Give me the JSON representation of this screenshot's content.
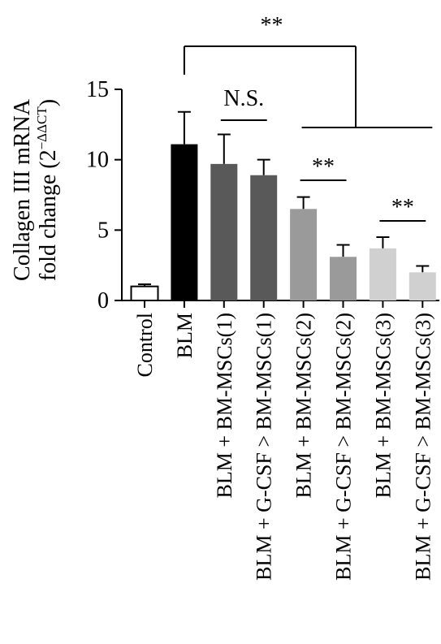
{
  "chart_data": {
    "type": "bar",
    "ylabel_line1": "Collagen III mRNA",
    "ylabel_line2_prefix": "fold change (2",
    "ylabel_superscript": "−ΔΔCT",
    "ylabel_line2_suffix": ")",
    "ylim": [
      0,
      15
    ],
    "yticks": [
      0,
      5,
      10,
      15
    ],
    "categories": [
      "Control",
      "BLM",
      "BLM + BM-MSCs(1)",
      "BLM + G-CSF > BM-MSCs(1)",
      "BLM + BM-MSCs(2)",
      "BLM + G-CSF > BM-MSCs(2)",
      "BLM + BM-MSCs(3)",
      "BLM + G-CSF > BM-MSCs(3)"
    ],
    "values": [
      1.0,
      11.1,
      9.7,
      8.9,
      6.5,
      3.1,
      3.7,
      2.0
    ],
    "errors": [
      0.15,
      2.3,
      2.1,
      1.1,
      0.85,
      0.85,
      0.8,
      0.45
    ],
    "bar_colors": [
      "#ffffff",
      "#000000",
      "#595959",
      "#595959",
      "#9a9a9a",
      "#9a9a9a",
      "#d0d0d0",
      "#d0d0d0"
    ],
    "annotations": [
      {
        "label": "**",
        "from": 1,
        "to_group": [
          4,
          7
        ]
      },
      {
        "label": "N.S.",
        "between": [
          2,
          3
        ]
      },
      {
        "label": "**",
        "between": [
          4,
          5
        ]
      },
      {
        "label": "**",
        "between": [
          6,
          7
        ]
      }
    ]
  }
}
